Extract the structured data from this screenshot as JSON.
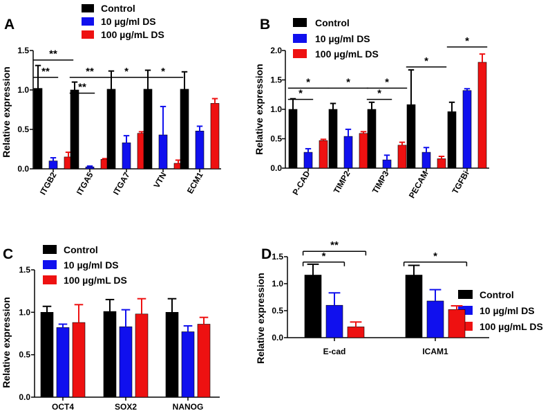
{
  "colors": {
    "Control": "#000000",
    "10 µg/ml DS": "#1010ee",
    "100 µg/mL DS": "#ee1111"
  },
  "chart_data": [
    {
      "panel": "A",
      "type": "bar",
      "ylabel": "Relative expression",
      "ylim": [
        0,
        1.5
      ],
      "yticks": [
        "0.0",
        "0.5",
        "1.0",
        "1.5"
      ],
      "categories": [
        "ITGB2",
        "ITGA5",
        "ITGA7",
        "VTN",
        "ECM1"
      ],
      "series": [
        {
          "name": "Control",
          "values": [
            1.02,
            1.0,
            1.01,
            1.01,
            1.01
          ],
          "errors": [
            0.29,
            0.1,
            0.23,
            0.24,
            0.22
          ]
        },
        {
          "name": "10 µg/ml DS",
          "values": [
            0.1,
            0.025,
            0.33,
            0.43,
            0.48
          ],
          "errors": [
            0.04,
            0.01,
            0.09,
            0.36,
            0.06
          ]
        },
        {
          "name": "100 µg/mL DS",
          "values": [
            0.15,
            0.12,
            0.45,
            0.07,
            0.83
          ],
          "errors": [
            0.06,
            0.01,
            0.02,
            0.04,
            0.06
          ]
        }
      ],
      "significance": [
        {
          "group": 0,
          "from": 0,
          "to": 2,
          "label": "**",
          "level": 1.38
        },
        {
          "group": 0,
          "from": 0,
          "to": 1,
          "label": "**",
          "level": 1.16
        },
        {
          "group": 1,
          "from": 0,
          "to": 2,
          "label": "**",
          "level": 1.16
        },
        {
          "group": 1,
          "from": 0,
          "to": 1,
          "label": "**",
          "level": 0.96
        },
        {
          "group": 2,
          "from": 0,
          "to": 2,
          "label": "*",
          "level": 1.16
        },
        {
          "group": 3,
          "from": 0,
          "to": 2,
          "label": "*",
          "level": 1.16
        }
      ],
      "legend_position": "top"
    },
    {
      "panel": "B",
      "type": "bar",
      "ylabel": "Relative expression",
      "ylim": [
        0,
        2.0
      ],
      "yticks": [
        "0.0",
        "0.5",
        "1.0",
        "1.5",
        "2.0"
      ],
      "categories": [
        "P-CAD",
        "TIMP2",
        "TIMP3",
        "PECAM",
        "TGFBi"
      ],
      "series": [
        {
          "name": "Control",
          "values": [
            1.0,
            1.0,
            1.0,
            1.08,
            0.96
          ],
          "errors": [
            0.18,
            0.1,
            0.12,
            0.59,
            0.16
          ]
        },
        {
          "name": "10 µg/ml DS",
          "values": [
            0.27,
            0.54,
            0.14,
            0.27,
            1.32
          ],
          "errors": [
            0.06,
            0.12,
            0.08,
            0.08,
            0.03
          ]
        },
        {
          "name": "100 µg/mL DS",
          "values": [
            0.47,
            0.59,
            0.39,
            0.16,
            1.8
          ],
          "errors": [
            0.02,
            0.03,
            0.05,
            0.04,
            0.14
          ]
        }
      ],
      "significance": [
        {
          "group": 0,
          "from": 0,
          "to": 2,
          "label": "*",
          "level": 1.36
        },
        {
          "group": 0,
          "from": 0,
          "to": 1,
          "label": "*",
          "level": 1.17
        },
        {
          "group": 1,
          "from": 0,
          "to": 2,
          "label": "*",
          "level": 1.36
        },
        {
          "group": 2,
          "from": 0,
          "to": 2,
          "label": "*",
          "level": 1.36
        },
        {
          "group": 2,
          "from": 0,
          "to": 1,
          "label": "*",
          "level": 1.17
        },
        {
          "group": 3,
          "from": 0,
          "to": 2,
          "label": "*",
          "level": 1.72
        },
        {
          "group": 4,
          "from": 0,
          "to": 2,
          "label": "*",
          "level": 2.06
        }
      ],
      "legend_position": "top-left"
    },
    {
      "panel": "C",
      "type": "bar",
      "ylabel": "Relative expression",
      "ylim": [
        0,
        1.5
      ],
      "yticks": [
        "0.0",
        "0.5",
        "1.0",
        "1.5"
      ],
      "categories": [
        "OCT4",
        "SOX2",
        "NANOG"
      ],
      "series": [
        {
          "name": "Control",
          "values": [
            1.0,
            1.01,
            1.0
          ],
          "errors": [
            0.07,
            0.14,
            0.16
          ]
        },
        {
          "name": "10 µg/ml DS",
          "values": [
            0.82,
            0.83,
            0.77
          ],
          "errors": [
            0.04,
            0.2,
            0.07
          ]
        },
        {
          "name": "100 µg/mL DS",
          "values": [
            0.88,
            0.98,
            0.86
          ],
          "errors": [
            0.21,
            0.18,
            0.08
          ]
        }
      ],
      "significance": [],
      "legend_position": "top-left"
    },
    {
      "panel": "D",
      "type": "bar",
      "ylabel": "Relative expression",
      "ylim": [
        0,
        1.5
      ],
      "yticks": [
        "0.0",
        "0.5",
        "1.0",
        "1.5"
      ],
      "categories": [
        "E-cad",
        "ICAM1"
      ],
      "series": [
        {
          "name": "Control",
          "values": [
            1.16,
            1.16
          ],
          "errors": [
            0.2,
            0.18
          ]
        },
        {
          "name": "10 µg/ml DS",
          "values": [
            0.6,
            0.68
          ],
          "errors": [
            0.23,
            0.21
          ]
        },
        {
          "name": "100 µg/mL DS",
          "values": [
            0.2,
            0.52
          ],
          "errors": [
            0.09,
            0.07
          ]
        }
      ],
      "significance": [
        {
          "group": 0,
          "from": 0,
          "to": 2,
          "label": "**",
          "level": 1.6
        },
        {
          "group": 0,
          "from": 0,
          "to": 1,
          "label": "*",
          "level": 1.4
        },
        {
          "group": 1,
          "from": 0,
          "to": 2,
          "label": "*",
          "level": 1.4
        }
      ],
      "legend_position": "right"
    }
  ]
}
